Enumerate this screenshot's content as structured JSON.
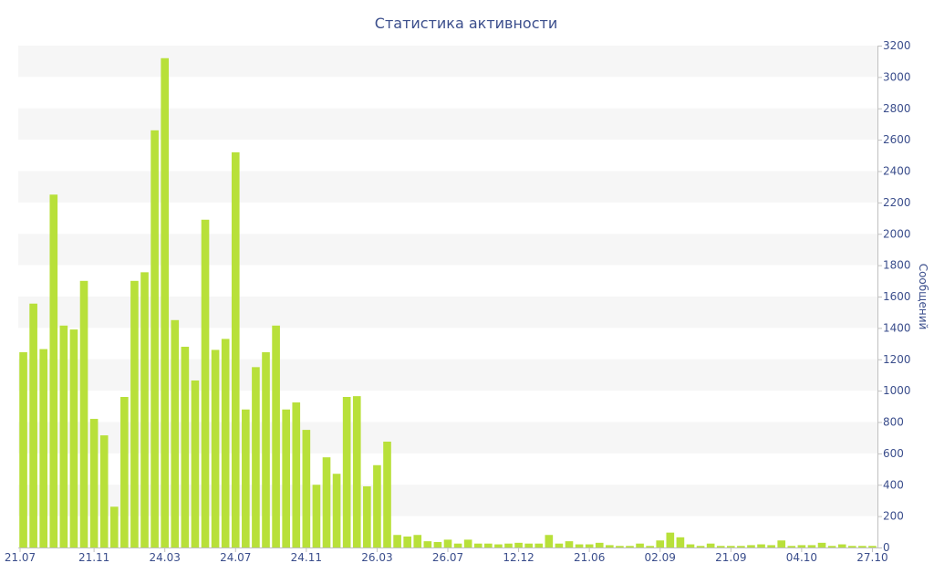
{
  "chart_data": {
    "type": "bar",
    "title": "Статистика активности",
    "xlabel": "",
    "ylabel": "Сообщений",
    "ylim": [
      0,
      3200
    ],
    "yticks": [
      0,
      200,
      400,
      600,
      800,
      1000,
      1200,
      1400,
      1600,
      1800,
      2000,
      2200,
      2400,
      2600,
      2800,
      3000,
      3200
    ],
    "y_axis_position": "right",
    "grid": "alternating horizontal bands",
    "legend": "none",
    "bar_color": "#b8e03a",
    "band_color": "#f6f6f6",
    "text_color": "#3b4e8c",
    "xtick_labels": [
      {
        "index": 0,
        "label": "21.07"
      },
      {
        "index": 7,
        "label": "21.11"
      },
      {
        "index": 14,
        "label": "24.03"
      },
      {
        "index": 21,
        "label": "24.07"
      },
      {
        "index": 28,
        "label": "24.11"
      },
      {
        "index": 35,
        "label": "26.03"
      },
      {
        "index": 42,
        "label": "26.07"
      },
      {
        "index": 49,
        "label": "12.12"
      },
      {
        "index": 56,
        "label": "21.06"
      },
      {
        "index": 63,
        "label": "02.09"
      },
      {
        "index": 70,
        "label": "21.09"
      },
      {
        "index": 77,
        "label": "04.10"
      },
      {
        "index": 84,
        "label": "27.10"
      }
    ],
    "values": [
      1245,
      1555,
      1265,
      2250,
      1415,
      1390,
      1700,
      820,
      715,
      260,
      960,
      1700,
      1755,
      2660,
      3120,
      1450,
      1280,
      1065,
      2090,
      1260,
      1330,
      2520,
      880,
      1150,
      1245,
      1415,
      880,
      925,
      750,
      400,
      575,
      470,
      960,
      965,
      390,
      525,
      675,
      80,
      70,
      80,
      40,
      35,
      50,
      25,
      50,
      25,
      25,
      20,
      25,
      30,
      25,
      25,
      80,
      25,
      40,
      20,
      20,
      30,
      15,
      10,
      10,
      25,
      10,
      45,
      95,
      65,
      20,
      10,
      25,
      10,
      10,
      10,
      15,
      20,
      15,
      45,
      10,
      15,
      15,
      30,
      10,
      20,
      10,
      10,
      10
    ]
  }
}
